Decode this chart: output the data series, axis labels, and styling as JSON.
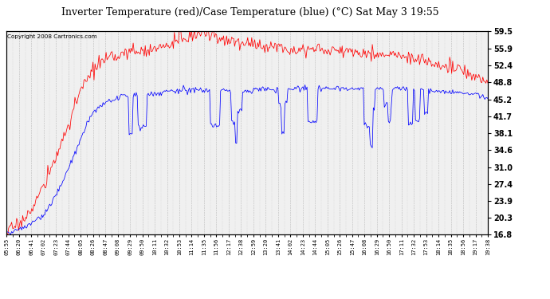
{
  "title": "Inverter Temperature (red)/Case Temperature (blue) (°C) Sat May 3 19:55",
  "copyright": "Copyright 2008 Cartronics.com",
  "background_color": "#ffffff",
  "plot_bg_color": "#f0f0f0",
  "grid_color": "#bbbbbb",
  "line_red_color": "red",
  "line_blue_color": "blue",
  "yticks": [
    16.8,
    20.3,
    23.9,
    27.4,
    31.0,
    34.6,
    38.1,
    41.7,
    45.2,
    48.8,
    52.4,
    55.9,
    59.5
  ],
  "xtick_labels": [
    "05:55",
    "06:20",
    "06:41",
    "07:02",
    "07:23",
    "07:44",
    "08:05",
    "08:26",
    "08:47",
    "09:08",
    "09:29",
    "09:50",
    "10:11",
    "10:32",
    "10:53",
    "11:14",
    "11:35",
    "11:56",
    "12:17",
    "12:38",
    "12:59",
    "13:20",
    "13:41",
    "14:02",
    "14:23",
    "14:44",
    "15:05",
    "15:26",
    "15:47",
    "16:08",
    "16:29",
    "16:50",
    "17:11",
    "17:32",
    "17:53",
    "18:14",
    "18:35",
    "18:56",
    "19:17",
    "19:38"
  ],
  "ymin": 16.8,
  "ymax": 59.5,
  "red_base": [
    17.5,
    19.0,
    22.0,
    27.0,
    33.0,
    40.0,
    47.0,
    51.5,
    53.5,
    54.5,
    55.2,
    55.5,
    55.8,
    56.2,
    57.5,
    58.8,
    59.2,
    58.0,
    57.5,
    57.0,
    56.8,
    56.5,
    56.2,
    56.0,
    55.8,
    55.8,
    55.5,
    55.5,
    55.3,
    55.0,
    54.8,
    54.5,
    54.2,
    53.8,
    53.2,
    52.5,
    51.8,
    51.0,
    50.0,
    48.8
  ],
  "blue_base": [
    17.2,
    17.8,
    19.0,
    21.0,
    25.0,
    30.5,
    37.0,
    42.5,
    44.5,
    45.5,
    46.0,
    46.3,
    46.5,
    46.8,
    47.0,
    47.2,
    47.3,
    47.2,
    47.0,
    47.0,
    47.2,
    47.3,
    47.3,
    47.5,
    47.5,
    47.5,
    47.5,
    47.5,
    47.5,
    47.5,
    47.5,
    47.5,
    47.5,
    47.3,
    47.2,
    47.0,
    46.8,
    46.5,
    46.2,
    45.5
  ],
  "blue_dip_regions": [
    [
      8,
      34
    ]
  ],
  "blue_dip_prob": 0.06,
  "blue_dip_min": 3.0,
  "blue_dip_max": 9.0,
  "red_noise_std": 0.7,
  "blue_noise_std": 0.3,
  "red_spike_region": [
    13,
    17
  ],
  "red_spike_prob": 0.06,
  "red_spike_min": 1.0,
  "red_spike_max": 3.5,
  "npoints_per_tick": 12,
  "seed": 17
}
